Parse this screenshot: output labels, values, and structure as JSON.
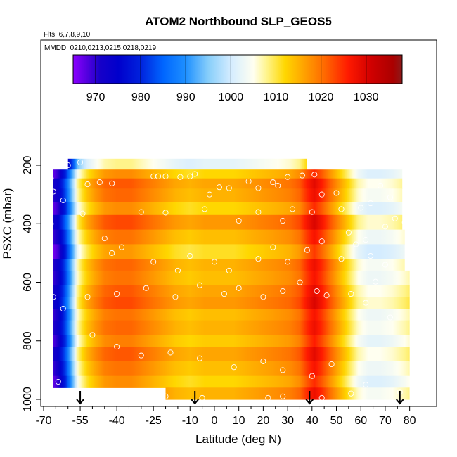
{
  "chart_data": {
    "type": "heatmap",
    "title": "ATOM2 Northbound SLP_GEOS5",
    "subtitle_flights": "Flts: 6,7,8,9,10",
    "subtitle_dates": "MMDD: 0210,0213,0215,0218,0219",
    "xlabel": "Latitude (deg N)",
    "ylabel": "PSXC (mbar)",
    "xlim": [
      -70,
      85
    ],
    "ylim": [
      1000,
      100
    ],
    "x_ticks": [
      -70,
      -55,
      -40,
      -25,
      -10,
      0,
      10,
      20,
      30,
      40,
      50,
      60,
      70,
      80
    ],
    "x_minor_ticks": [
      -65,
      -60,
      -50,
      -45,
      -35,
      -30,
      -20,
      -15,
      -5,
      5,
      15,
      25,
      35,
      45,
      55,
      65,
      75
    ],
    "y_ticks": [
      200,
      400,
      600,
      800,
      1000
    ],
    "colorbar": {
      "range": [
        965,
        1038
      ],
      "ticks": [
        970,
        980,
        990,
        1000,
        1010,
        1020,
        1030
      ],
      "colors": [
        [
          965,
          "#8b00ff"
        ],
        [
          968,
          "#5500e0"
        ],
        [
          971,
          "#1600c8"
        ],
        [
          975,
          "#0000cc"
        ],
        [
          980,
          "#0022dd"
        ],
        [
          985,
          "#0066ff"
        ],
        [
          990,
          "#1e90ff"
        ],
        [
          995,
          "#87cefa"
        ],
        [
          1000,
          "#d4ecff"
        ],
        [
          1005,
          "#fffff0"
        ],
        [
          1008,
          "#fff48a"
        ],
        [
          1012,
          "#ffd700"
        ],
        [
          1016,
          "#ffa500"
        ],
        [
          1021,
          "#ff6600"
        ],
        [
          1026,
          "#ff1a00"
        ],
        [
          1031,
          "#d10000"
        ],
        [
          1036,
          "#aa0000"
        ],
        [
          1038,
          "#8b1a1a"
        ]
      ]
    },
    "arrows_lat": [
      -55,
      -8,
      39,
      76
    ],
    "latitude_profile_slp": [
      [
        -70,
        966
      ],
      [
        -67,
        968
      ],
      [
        -64,
        972
      ],
      [
        -61,
        982
      ],
      [
        -58,
        995
      ],
      [
        -56,
        1006
      ],
      [
        -54,
        1010
      ],
      [
        -52,
        1013
      ],
      [
        -49,
        1016
      ],
      [
        -45,
        1019
      ],
      [
        -40,
        1020
      ],
      [
        -34,
        1020
      ],
      [
        -28,
        1018
      ],
      [
        -22,
        1016
      ],
      [
        -16,
        1014
      ],
      [
        -10,
        1013
      ],
      [
        -4,
        1014
      ],
      [
        2,
        1014
      ],
      [
        8,
        1014
      ],
      [
        14,
        1015
      ],
      [
        20,
        1016
      ],
      [
        26,
        1017
      ],
      [
        31,
        1018
      ],
      [
        35,
        1020
      ],
      [
        38,
        1024
      ],
      [
        41,
        1027
      ],
      [
        44,
        1024
      ],
      [
        47,
        1020
      ],
      [
        51,
        1015
      ],
      [
        55,
        1010
      ],
      [
        59,
        1005
      ],
      [
        63,
        1003
      ],
      [
        68,
        1003
      ],
      [
        73,
        1004
      ],
      [
        78,
        1006
      ],
      [
        82,
        1008
      ]
    ],
    "pressure_bands": [
      {
        "p_top": 178,
        "p_bot": 215,
        "lat_min": -60,
        "lat_max": 38,
        "offset": -12
      },
      {
        "p_top": 215,
        "p_bot": 245,
        "lat_min": -66,
        "lat_max": 77,
        "offset": -2
      },
      {
        "p_top": 245,
        "p_bot": 280,
        "lat_min": -66,
        "lat_max": 77,
        "offset": 2
      },
      {
        "p_top": 280,
        "p_bot": 325,
        "lat_min": -66,
        "lat_max": 77,
        "offset": 1
      },
      {
        "p_top": 325,
        "p_bot": 370,
        "lat_min": -66,
        "lat_max": 77,
        "offset": -2
      },
      {
        "p_top": 370,
        "p_bot": 420,
        "lat_min": -66,
        "lat_max": 77,
        "offset": 3
      },
      {
        "p_top": 420,
        "p_bot": 470,
        "lat_min": -66,
        "lat_max": 78,
        "offset": 0
      },
      {
        "p_top": 470,
        "p_bot": 520,
        "lat_min": -66,
        "lat_max": 78,
        "offset": -3
      },
      {
        "p_top": 520,
        "p_bot": 560,
        "lat_min": -66,
        "lat_max": 78,
        "offset": 1
      },
      {
        "p_top": 560,
        "p_bot": 610,
        "lat_min": -66,
        "lat_max": 80,
        "offset": 0
      },
      {
        "p_top": 610,
        "p_bot": 650,
        "lat_min": -66,
        "lat_max": 80,
        "offset": 2
      },
      {
        "p_top": 650,
        "p_bot": 690,
        "lat_min": -66,
        "lat_max": 80,
        "offset": 3
      },
      {
        "p_top": 690,
        "p_bot": 730,
        "lat_min": -66,
        "lat_max": 80,
        "offset": 0
      },
      {
        "p_top": 730,
        "p_bot": 780,
        "lat_min": -66,
        "lat_max": 80,
        "offset": 1
      },
      {
        "p_top": 780,
        "p_bot": 820,
        "lat_min": -66,
        "lat_max": 80,
        "offset": -1
      },
      {
        "p_top": 820,
        "p_bot": 870,
        "lat_min": -66,
        "lat_max": 80,
        "offset": 2
      },
      {
        "p_top": 870,
        "p_bot": 920,
        "lat_min": -66,
        "lat_max": 80,
        "offset": 0
      },
      {
        "p_top": 920,
        "p_bot": 960,
        "lat_min": -66,
        "lat_max": 80,
        "offset": -2
      },
      {
        "p_top": 960,
        "p_bot": 1000,
        "lat_min": -20,
        "lat_max": 80,
        "offset": 1
      }
    ],
    "points": [
      [
        -55,
        190
      ],
      [
        -60,
        200
      ],
      [
        -67,
        245
      ],
      [
        -66,
        290
      ],
      [
        -62,
        320
      ],
      [
        -67,
        400
      ],
      [
        -52,
        265
      ],
      [
        -47,
        258
      ],
      [
        -42,
        262
      ],
      [
        -25,
        238
      ],
      [
        -23,
        238
      ],
      [
        -20,
        238
      ],
      [
        -14,
        240
      ],
      [
        -10,
        238
      ],
      [
        -8,
        230
      ],
      [
        -2,
        300
      ],
      [
        2,
        275
      ],
      [
        6,
        278
      ],
      [
        14,
        255
      ],
      [
        18,
        278
      ],
      [
        24,
        258
      ],
      [
        26,
        270
      ],
      [
        30,
        240
      ],
      [
        36,
        235
      ],
      [
        41,
        232
      ],
      [
        -30,
        360
      ],
      [
        -20,
        362
      ],
      [
        -4,
        350
      ],
      [
        10,
        390
      ],
      [
        18,
        360
      ],
      [
        28,
        390
      ],
      [
        32,
        350
      ],
      [
        40,
        360
      ],
      [
        44,
        300
      ],
      [
        50,
        295
      ],
      [
        52,
        350
      ],
      [
        60,
        345
      ],
      [
        64,
        330
      ],
      [
        68,
        270
      ],
      [
        72,
        310
      ],
      [
        74,
        382
      ],
      [
        78,
        395
      ],
      [
        70,
        410
      ],
      [
        62,
        455
      ],
      [
        -54,
        365
      ],
      [
        -38,
        480
      ],
      [
        -45,
        450
      ],
      [
        -42,
        500
      ],
      [
        -25,
        530
      ],
      [
        -15,
        560
      ],
      [
        -10,
        510
      ],
      [
        0,
        530
      ],
      [
        6,
        560
      ],
      [
        18,
        520
      ],
      [
        24,
        480
      ],
      [
        30,
        530
      ],
      [
        38,
        490
      ],
      [
        44,
        460
      ],
      [
        52,
        520
      ],
      [
        64,
        510
      ],
      [
        70,
        540
      ],
      [
        -66,
        650
      ],
      [
        -62,
        690
      ],
      [
        -52,
        650
      ],
      [
        -40,
        640
      ],
      [
        -28,
        620
      ],
      [
        -16,
        650
      ],
      [
        -6,
        610
      ],
      [
        4,
        640
      ],
      [
        10,
        620
      ],
      [
        20,
        650
      ],
      [
        28,
        630
      ],
      [
        35,
        600
      ],
      [
        42,
        630
      ],
      [
        46,
        645
      ],
      [
        56,
        640
      ],
      [
        62,
        670
      ],
      [
        72,
        720
      ],
      [
        -50,
        780
      ],
      [
        -40,
        820
      ],
      [
        -30,
        850
      ],
      [
        -18,
        840
      ],
      [
        -6,
        860
      ],
      [
        8,
        890
      ],
      [
        20,
        870
      ],
      [
        28,
        900
      ],
      [
        40,
        920
      ],
      [
        48,
        880
      ],
      [
        62,
        950
      ],
      [
        -64,
        940
      ],
      [
        -20,
        990
      ],
      [
        -5,
        995
      ],
      [
        22,
        995
      ],
      [
        28,
        990
      ],
      [
        44,
        995
      ],
      [
        56,
        980
      ],
      [
        76,
        975
      ],
      [
        -62,
        200
      ],
      [
        55,
        430
      ],
      [
        58,
        470
      ],
      [
        66,
        598
      ]
    ]
  }
}
